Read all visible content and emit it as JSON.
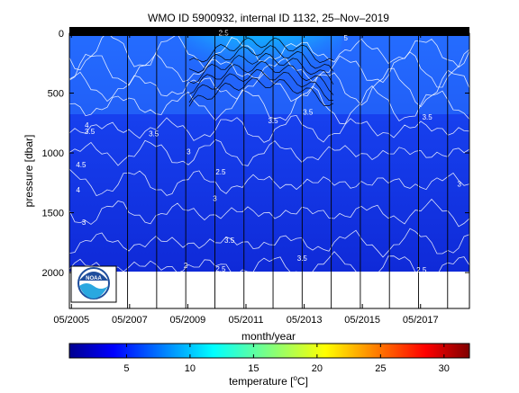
{
  "chart_data": {
    "type": "heatmap",
    "title": "WMO ID 5900932, internal ID 1132, 25–Nov–2019",
    "xlabel": "month/year",
    "ylabel": "pressure [dbar]",
    "x_ticks": [
      "05/2005",
      "05/2007",
      "05/2009",
      "05/2011",
      "05/2013",
      "05/2015",
      "05/2017"
    ],
    "x_tick_years": [
      2005.37,
      2007.37,
      2009.37,
      2011.37,
      2013.37,
      2015.37,
      2017.37
    ],
    "xlim": [
      2005.3,
      2019.05
    ],
    "y_ticks": [
      0,
      500,
      1000,
      1500,
      2000
    ],
    "ylim": [
      0,
      2300
    ],
    "y_reversed": true,
    "data_max_pressure": 2000,
    "profile_years": [
      2007.3,
      2008.3,
      2009.3,
      2010.3,
      2011.3,
      2012.3,
      2013.3,
      2014.3,
      2015.3,
      2016.3,
      2017.3,
      2018.3
    ],
    "colorbar": {
      "label": "temperature [",
      "label_sup": "o",
      "label_tail": "C]",
      "ticks": [
        5,
        10,
        15,
        20,
        25,
        30
      ],
      "range": [
        0.5,
        32
      ],
      "colormap": "jet"
    },
    "contour_labels": [
      {
        "text": "4",
        "x": 2005.9,
        "y": 790
      },
      {
        "text": "3.5",
        "x": 2006.0,
        "y": 840
      },
      {
        "text": "4.5",
        "x": 2005.7,
        "y": 1120
      },
      {
        "text": "4",
        "x": 2005.6,
        "y": 1330
      },
      {
        "text": "3",
        "x": 2005.8,
        "y": 1600
      },
      {
        "text": "3.5",
        "x": 2008.2,
        "y": 860
      },
      {
        "text": "3",
        "x": 2009.4,
        "y": 1010
      },
      {
        "text": "2.5",
        "x": 2010.5,
        "y": 1180
      },
      {
        "text": "3",
        "x": 2010.3,
        "y": 1400
      },
      {
        "text": "3.5",
        "x": 2010.8,
        "y": 1750
      },
      {
        "text": "2",
        "x": 2009.3,
        "y": 1960
      },
      {
        "text": "2.5",
        "x": 2010.5,
        "y": 1990
      },
      {
        "text": "3.5",
        "x": 2013.3,
        "y": 1900
      },
      {
        "text": "3.5",
        "x": 2012.3,
        "y": 750
      },
      {
        "text": "3.5",
        "x": 2013.5,
        "y": 680
      },
      {
        "text": "3.5",
        "x": 2017.6,
        "y": 720
      },
      {
        "text": "3",
        "x": 2018.7,
        "y": 1280
      },
      {
        "text": "2.5",
        "x": 2017.4,
        "y": 2000
      },
      {
        "text": "2.5",
        "x": 2010.6,
        "y": 20
      },
      {
        "text": "5",
        "x": 2014.8,
        "y": 60
      }
    ]
  },
  "logo": {
    "name": "NOAA",
    "text": "NOAA"
  }
}
